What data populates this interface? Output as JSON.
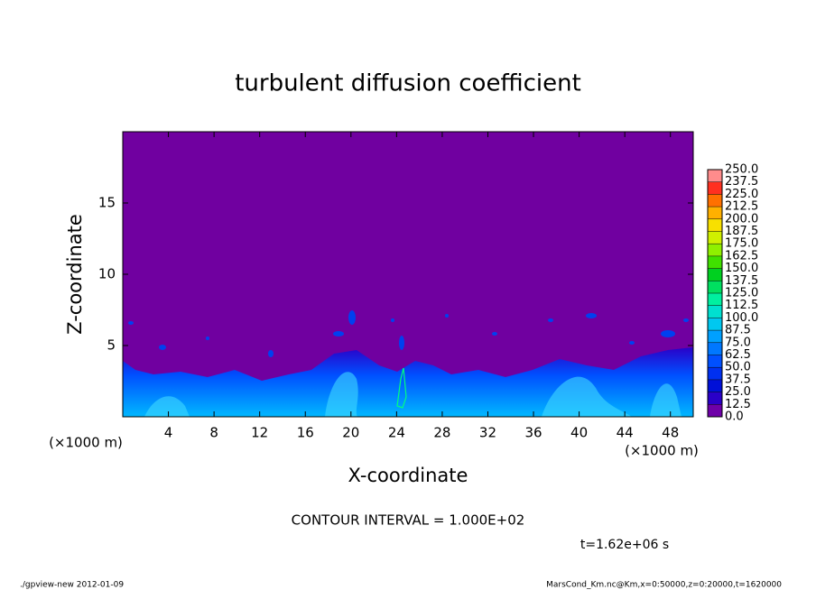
{
  "chart_data": {
    "type": "heatmap",
    "title": "turbulent diffusion coefficient",
    "x_label": "X-coordinate",
    "y_label": "Z-coordinate",
    "x_unit": "(×1000 m)",
    "y_unit": "(×1000 m)",
    "xlim": [
      0,
      50
    ],
    "xticks": [
      4,
      8,
      12,
      16,
      20,
      24,
      28,
      32,
      36,
      40,
      44,
      48
    ],
    "ylim": [
      0,
      20
    ],
    "yticks": [
      5,
      10,
      15
    ],
    "colorbar_levels": [
      {
        "value": 0,
        "label": "0.0"
      },
      {
        "value": 12.5,
        "label": "12.5"
      },
      {
        "value": 25,
        "label": "25.0"
      },
      {
        "value": 37.5,
        "label": "37.5"
      },
      {
        "value": 50,
        "label": "50.0"
      },
      {
        "value": 62.5,
        "label": "62.5"
      },
      {
        "value": 75,
        "label": "75.0"
      },
      {
        "value": 87.5,
        "label": "87.5"
      },
      {
        "value": 100,
        "label": "100.0"
      },
      {
        "value": 112.5,
        "label": "112.5"
      },
      {
        "value": 125,
        "label": "125.0"
      },
      {
        "value": 137.5,
        "label": "137.5"
      },
      {
        "value": 150,
        "label": "150.0"
      },
      {
        "value": 162.5,
        "label": "162.5"
      },
      {
        "value": 175,
        "label": "175.0"
      },
      {
        "value": 187.5,
        "label": "187.5"
      },
      {
        "value": 200,
        "label": "200.0"
      },
      {
        "value": 212.5,
        "label": "212.5"
      },
      {
        "value": 225,
        "label": "225.0"
      },
      {
        "value": 237.5,
        "label": "237.5"
      },
      {
        "value": 250,
        "label": "250.0"
      }
    ],
    "colorbar_colors": [
      "#6e00a8",
      "#2a00c8",
      "#0010d8",
      "#0030f0",
      "#0050ff",
      "#0078ff",
      "#00a0ff",
      "#00c8f0",
      "#00e0d0",
      "#00f0a0",
      "#00e060",
      "#00d020",
      "#40e000",
      "#90f000",
      "#d0f000",
      "#f8e000",
      "#ffb000",
      "#ff7000",
      "#ff3020",
      "#ff8c8c"
    ],
    "contour_interval": "CONTOUR INTERVAL = 1.000E+02",
    "time_label": "t=1.62e+06 s",
    "footer_left": "./gpview-new   2012-01-09",
    "footer_right": "MarsCond_Km.nc@Km,x=0:50000,z=0:20000,t=1620000"
  }
}
